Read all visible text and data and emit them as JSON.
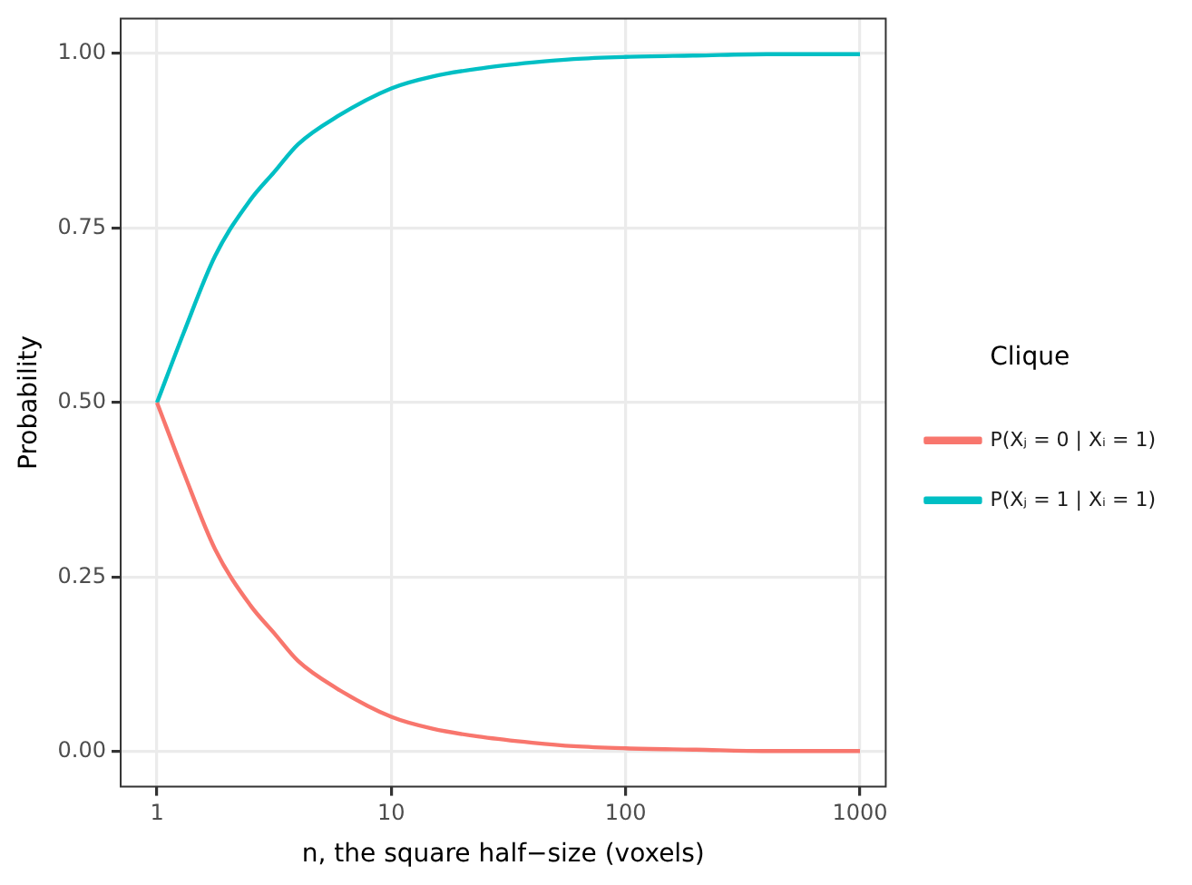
{
  "chart_data": {
    "type": "line",
    "xlabel": "n, the square half−size (voxels)",
    "ylabel": "Probability",
    "legend_title": "Clique",
    "legend": "right",
    "grid": true,
    "log": "x",
    "marker": "none",
    "line_style": "solid",
    "xlim": [
      0.714,
      1288
    ],
    "xticks": [
      1,
      10,
      100,
      1000
    ],
    "ylim": [
      -0.05,
      1.05
    ],
    "yticks": [
      {
        "value": 0,
        "label": "0.00"
      },
      {
        "value": 0.25,
        "label": "0.25"
      },
      {
        "value": 0.5,
        "label": "0.50"
      },
      {
        "value": 0.75,
        "label": "0.75"
      },
      {
        "value": 1,
        "label": "1.00"
      }
    ],
    "x": [
      1,
      1.3,
      1.77,
      2.5,
      3.16,
      4,
      5.9,
      10,
      15,
      24.6,
      40,
      60,
      100,
      200,
      400,
      1000
    ],
    "series": [
      {
        "name": "P(Xⱼ = 0 | Xᵢ = 1)",
        "color": "#f8766d",
        "values": [
          0.5,
          0.4,
          0.29,
          0.21,
          0.17,
          0.13,
          0.09,
          0.05,
          0.033,
          0.021,
          0.013,
          0.008,
          0.005,
          0.003,
          0.001,
          0.001
        ]
      },
      {
        "name": "P(Xⱼ = 1 | Xᵢ = 1)",
        "color": "#00bfc4",
        "values": [
          0.5,
          0.6,
          0.71,
          0.79,
          0.83,
          0.87,
          0.91,
          0.95,
          0.967,
          0.979,
          0.987,
          0.992,
          0.995,
          0.997,
          0.999,
          0.999
        ]
      }
    ]
  }
}
